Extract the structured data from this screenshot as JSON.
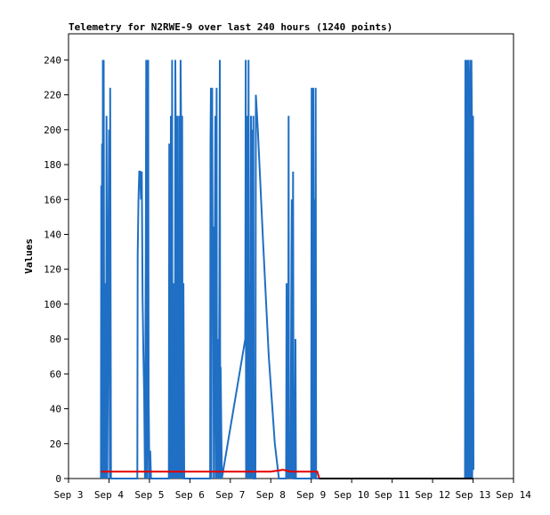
{
  "chart_data": {
    "type": "line",
    "title": "Telemetry for N2RWE-9 over last 240 hours (1240 points)",
    "xlabel": "",
    "ylabel": "Values",
    "x_ticks": [
      "Sep 3",
      "Sep 4",
      "Sep 5",
      "Sep 6",
      "Sep 7",
      "Sep 8",
      "Sep 9",
      "Sep 10",
      "Sep 11",
      "Sep 12",
      "Sep 13",
      "Sep 14"
    ],
    "xlim_days": [
      3,
      14
    ],
    "ylim": [
      0,
      255
    ],
    "y_ticks": [
      0,
      20,
      40,
      60,
      80,
      100,
      120,
      140,
      160,
      180,
      200,
      220,
      240
    ],
    "grid": false,
    "series": [
      {
        "color": "#1f6fc4",
        "points": [
          [
            3.8,
            0
          ],
          [
            3.81,
            168
          ],
          [
            3.82,
            0
          ],
          [
            3.83,
            192
          ],
          [
            3.84,
            0
          ],
          [
            3.85,
            240
          ],
          [
            3.86,
            0
          ],
          [
            3.87,
            240
          ],
          [
            3.88,
            64
          ],
          [
            3.89,
            0
          ],
          [
            3.9,
            48
          ],
          [
            3.92,
            112
          ],
          [
            3.93,
            0
          ],
          [
            3.94,
            208
          ],
          [
            3.95,
            104
          ],
          [
            3.96,
            0
          ],
          [
            4.0,
            200
          ],
          [
            4.02,
            0
          ],
          [
            4.03,
            224
          ],
          [
            4.05,
            0
          ],
          [
            4.7,
            0
          ],
          [
            4.71,
            128
          ],
          [
            4.73,
            160
          ],
          [
            4.75,
            176
          ],
          [
            4.77,
            176
          ],
          [
            4.79,
            160
          ],
          [
            4.81,
            176
          ],
          [
            4.83,
            104
          ],
          [
            4.85,
            72
          ],
          [
            4.87,
            48
          ],
          [
            4.89,
            0
          ],
          [
            4.91,
            128
          ],
          [
            4.92,
            240
          ],
          [
            4.93,
            0
          ],
          [
            4.94,
            240
          ],
          [
            4.95,
            0
          ],
          [
            4.97,
            240
          ],
          [
            4.98,
            48
          ],
          [
            5.0,
            0
          ],
          [
            5.02,
            16
          ],
          [
            5.04,
            0
          ],
          [
            5.48,
            0
          ],
          [
            5.49,
            192
          ],
          [
            5.5,
            144
          ],
          [
            5.51,
            0
          ],
          [
            5.53,
            208
          ],
          [
            5.55,
            0
          ],
          [
            5.56,
            240
          ],
          [
            5.57,
            0
          ],
          [
            5.59,
            112
          ],
          [
            5.6,
            0
          ],
          [
            5.62,
            112
          ],
          [
            5.63,
            0
          ],
          [
            5.64,
            240
          ],
          [
            5.65,
            192
          ],
          [
            5.66,
            0
          ],
          [
            5.68,
            192
          ],
          [
            5.69,
            208
          ],
          [
            5.7,
            0
          ],
          [
            5.72,
            88
          ],
          [
            5.73,
            0
          ],
          [
            5.74,
            208
          ],
          [
            5.75,
            0
          ],
          [
            5.77,
            240
          ],
          [
            5.78,
            208
          ],
          [
            5.79,
            0
          ],
          [
            5.81,
            208
          ],
          [
            5.82,
            0
          ],
          [
            5.84,
            112
          ],
          [
            5.86,
            0
          ],
          [
            6.5,
            0
          ],
          [
            6.51,
            192
          ],
          [
            6.52,
            224
          ],
          [
            6.53,
            0
          ],
          [
            6.55,
            224
          ],
          [
            6.56,
            144
          ],
          [
            6.58,
            144
          ],
          [
            6.59,
            0
          ],
          [
            6.63,
            208
          ],
          [
            6.64,
            0
          ],
          [
            6.66,
            224
          ],
          [
            6.67,
            0
          ],
          [
            6.69,
            80
          ],
          [
            6.7,
            64
          ],
          [
            6.71,
            0
          ],
          [
            6.73,
            112
          ],
          [
            6.74,
            240
          ],
          [
            6.75,
            0
          ],
          [
            6.76,
            64
          ],
          [
            6.79,
            0
          ],
          [
            7.37,
            80
          ],
          [
            7.38,
            240
          ],
          [
            7.39,
            0
          ],
          [
            7.4,
            144
          ],
          [
            7.41,
            208
          ],
          [
            7.42,
            0
          ],
          [
            7.44,
            80
          ],
          [
            7.45,
            240
          ],
          [
            7.46,
            0
          ],
          [
            7.48,
            112
          ],
          [
            7.49,
            0
          ],
          [
            7.51,
            208
          ],
          [
            7.52,
            0
          ],
          [
            7.54,
            200
          ],
          [
            7.55,
            0
          ],
          [
            7.57,
            208
          ],
          [
            7.58,
            0
          ],
          [
            7.62,
            0
          ],
          [
            7.63,
            220
          ],
          [
            7.68,
            200
          ],
          [
            7.8,
            140
          ],
          [
            7.95,
            70
          ],
          [
            8.1,
            20
          ],
          [
            8.2,
            0
          ],
          [
            8.38,
            0
          ],
          [
            8.39,
            112
          ],
          [
            8.4,
            0
          ],
          [
            8.42,
            80
          ],
          [
            8.43,
            0
          ],
          [
            8.44,
            208
          ],
          [
            8.45,
            16
          ],
          [
            8.47,
            0
          ],
          [
            8.48,
            16
          ],
          [
            8.49,
            0
          ],
          [
            8.51,
            128
          ],
          [
            8.52,
            160
          ],
          [
            8.53,
            0
          ],
          [
            8.55,
            176
          ],
          [
            8.56,
            64
          ],
          [
            8.57,
            0
          ],
          [
            8.6,
            0
          ],
          [
            8.61,
            80
          ],
          [
            8.62,
            0
          ],
          [
            8.7,
            0
          ],
          [
            9.0,
            0
          ],
          [
            9.01,
            224
          ],
          [
            9.02,
            200
          ],
          [
            9.03,
            0
          ],
          [
            9.04,
            208
          ],
          [
            9.05,
            224
          ],
          [
            9.06,
            0
          ],
          [
            9.08,
            160
          ],
          [
            9.09,
            0
          ],
          [
            9.11,
            224
          ],
          [
            9.12,
            0
          ],
          [
            12.8,
            0
          ],
          [
            12.81,
            240
          ],
          [
            12.82,
            0
          ],
          [
            12.84,
            208
          ],
          [
            12.85,
            240
          ],
          [
            12.86,
            0
          ],
          [
            12.88,
            240
          ],
          [
            12.89,
            224
          ],
          [
            12.9,
            0
          ],
          [
            12.92,
            200
          ],
          [
            12.93,
            240
          ],
          [
            12.94,
            0
          ],
          [
            12.96,
            240
          ],
          [
            12.97,
            208
          ],
          [
            12.98,
            0
          ],
          [
            13.0,
            208
          ],
          [
            13.01,
            5
          ]
        ]
      },
      {
        "color": "#e60000",
        "points": [
          [
            3.8,
            4
          ],
          [
            4.6,
            4
          ],
          [
            5.2,
            4
          ],
          [
            6.0,
            4
          ],
          [
            6.8,
            4
          ],
          [
            7.5,
            4
          ],
          [
            8.0,
            4
          ],
          [
            8.3,
            5
          ],
          [
            8.5,
            4
          ],
          [
            9.15,
            4
          ],
          [
            9.2,
            0
          ]
        ]
      },
      {
        "color": "#000000",
        "points": [
          [
            9.2,
            0
          ],
          [
            13.0,
            0
          ]
        ]
      }
    ]
  }
}
